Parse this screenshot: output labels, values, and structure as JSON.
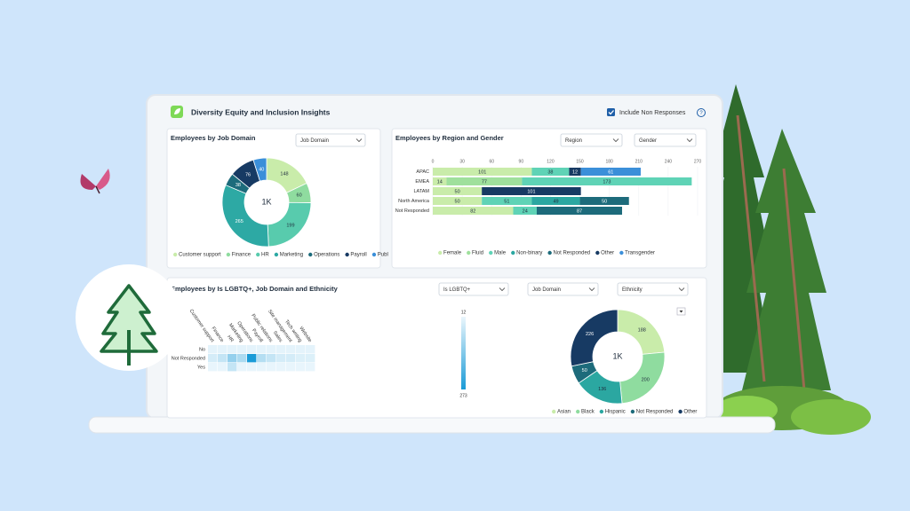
{
  "header": {
    "title": "Diversity Equity and Inclusion Insights",
    "checkbox_label": "Include Non Responses",
    "help_icon": "?"
  },
  "panels": [
    {
      "title": "Employees by Job Domain",
      "filters": [
        "Job Domain"
      ],
      "chart": {
        "type": "donut",
        "center_label": "1K",
        "categories": [
          "Customer support",
          "Finance",
          "HR",
          "Marketing",
          "Operations",
          "Payroll",
          "Publ"
        ],
        "values": [
          148,
          60,
          199,
          265,
          38,
          76,
          40
        ],
        "colors": [
          "#c9ecaa",
          "#8fdc9f",
          "#58cbad",
          "#2da9a4",
          "#1d6b7b",
          "#173a63",
          "#3b8fd9"
        ]
      }
    },
    {
      "title": "Employees by Region and Gender",
      "filters": [
        "Region",
        "Gender"
      ],
      "chart": {
        "type": "stacked_bar",
        "orientation": "horizontal",
        "categories": [
          "APAC",
          "EMEA",
          "LATAM",
          "North America",
          "Not Responded"
        ],
        "series": [
          {
            "name": "Female",
            "color": "#c9ecaa",
            "values": [
              101,
              14,
              50,
              50,
              82
            ]
          },
          {
            "name": "Fluid",
            "color": "#9fe09c",
            "values": [
              null,
              77,
              null,
              null,
              null
            ]
          },
          {
            "name": "Male",
            "color": "#5fd3b6",
            "values": [
              38,
              173,
              null,
              51,
              24
            ]
          },
          {
            "name": "Non-binary",
            "color": "#2ba7a1",
            "values": [
              null,
              null,
              null,
              49,
              null
            ]
          },
          {
            "name": "Not Responded",
            "color": "#1d6b7b",
            "values": [
              null,
              null,
              null,
              50,
              87
            ]
          },
          {
            "name": "Other",
            "color": "#173a63",
            "values": [
              12,
              null,
              101,
              null,
              null
            ]
          },
          {
            "name": "Transgender",
            "color": "#3b8fd9",
            "values": [
              61,
              null,
              null,
              null,
              null
            ]
          }
        ],
        "xlim": [
          0,
          270
        ],
        "xticks": [
          0,
          30,
          60,
          90,
          120,
          150,
          180,
          210,
          240,
          270
        ],
        "grid": true
      }
    },
    {
      "title": "Employees by Is LGBTQ+, Job Domain and Ethnicity",
      "filters": [
        "Is LGBTQ+",
        "Job Domain",
        "Ethnicity"
      ],
      "charts": [
        {
          "type": "heatmap",
          "columns": [
            "Customer support",
            "Finance",
            "HR",
            "Marketing",
            "Operations",
            "Payroll",
            "Public relations",
            "Sales",
            "Site management",
            "Tech writing",
            "Website"
          ],
          "rows": [
            "No",
            "Not Responded",
            "Yes"
          ],
          "values": [
            [
              20,
              20,
              20,
              20,
              20,
              20,
              20,
              20,
              20,
              20,
              20
            ],
            [
              40,
              60,
              120,
              90,
              273,
              80,
              60,
              40,
              40,
              30,
              30
            ],
            [
              15,
              15,
              60,
              15,
              15,
              15,
              15,
              15,
              15,
              15,
              15
            ]
          ],
          "colorbar": {
            "range": [
              12,
              273
            ],
            "colors": [
              "#eaf6fc",
              "#1a9bd7"
            ]
          }
        },
        {
          "type": "donut",
          "center_label": "1K",
          "categories": [
            "Asian",
            "Black",
            "Hispanic",
            "Not Responded",
            "Other"
          ],
          "values": [
            188,
            200,
            136,
            50,
            226
          ],
          "colors": [
            "#c9ecaa",
            "#8fdc9f",
            "#2ba7a1",
            "#1d6b7b",
            "#173a63"
          ]
        }
      ]
    }
  ]
}
